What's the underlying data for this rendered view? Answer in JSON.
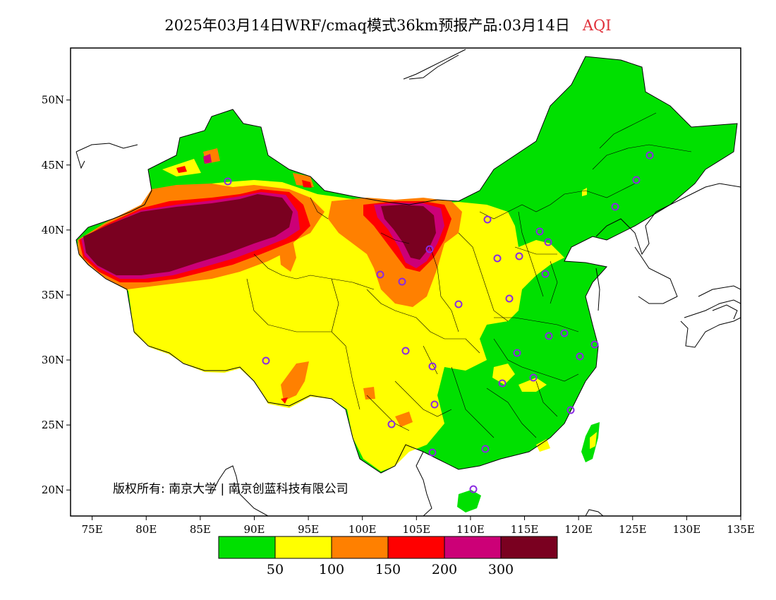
{
  "title": {
    "main": "2025年03月14日WRF/cmaq模式36km预报产品:03月14日",
    "variable": "AQI"
  },
  "map": {
    "lon_range": [
      73,
      135
    ],
    "lat_range": [
      18,
      54
    ],
    "x_ticks": [
      "75E",
      "80E",
      "85E",
      "90E",
      "95E",
      "100E",
      "105E",
      "110E",
      "115E",
      "120E",
      "125E",
      "130E",
      "135E"
    ],
    "y_ticks": [
      "50N",
      "45N",
      "40N",
      "35N",
      "30N",
      "25N",
      "20N"
    ],
    "copyright": "版权所有: 南京大学 | 南京创蓝科技有限公司"
  },
  "legend": {
    "colors": [
      "#00e000",
      "#ffff00",
      "#ff8000",
      "#ff0000",
      "#cc0077",
      "#7a0020"
    ],
    "labels": [
      "50",
      "100",
      "150",
      "200",
      "300"
    ]
  }
}
